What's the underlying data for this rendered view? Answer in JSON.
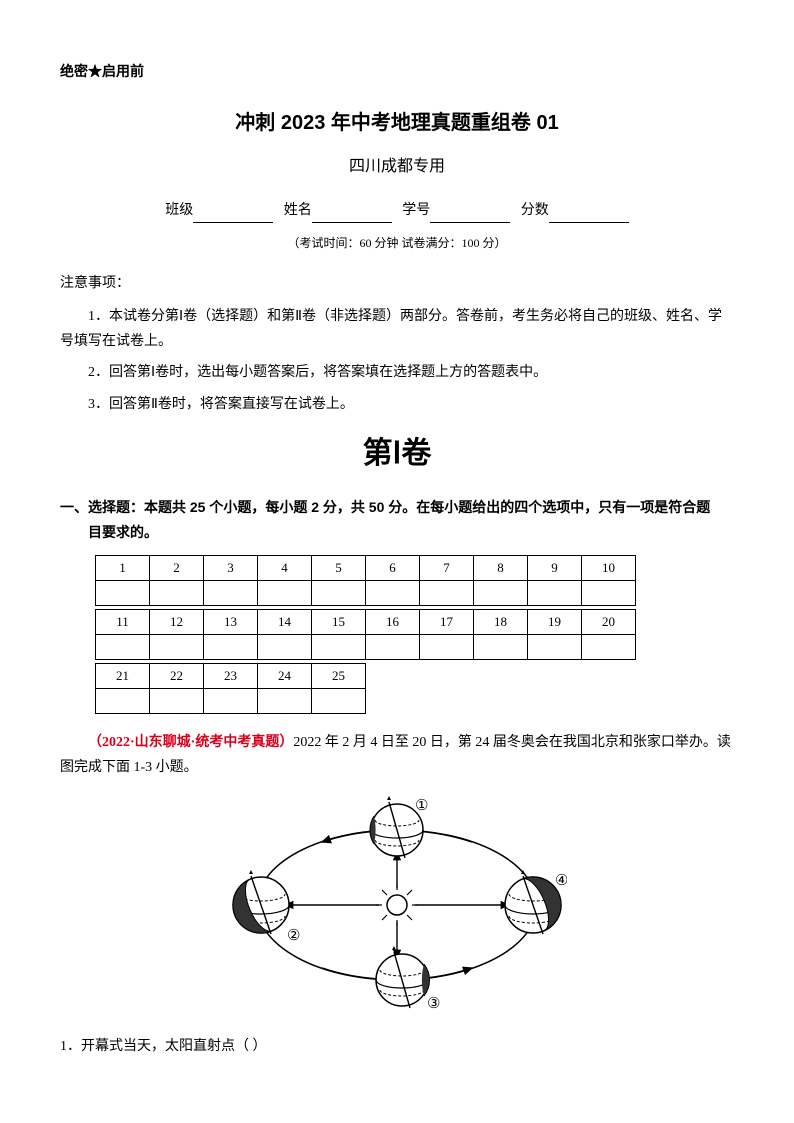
{
  "confidential": "绝密★启用前",
  "title": "冲刺 2023 年中考地理真题重组卷 01",
  "subtitle": "四川成都专用",
  "info_labels": {
    "class": "班级",
    "name": "姓名",
    "id": "学号",
    "score": "分数"
  },
  "exam_meta": "（考试时间：60 分钟   试卷满分：100 分）",
  "notes_title": "注意事项：",
  "notes": [
    "1．本试卷分第Ⅰ卷（选择题）和第Ⅱ卷（非选择题）两部分。答卷前，考生务必将自己的班级、姓名、学号填写在试卷上。",
    "2．回答第Ⅰ卷时，选出每小题答案后，将答案填在选择题上方的答题表中。",
    "3．回答第Ⅱ卷时，将答案直接写在试卷上。"
  ],
  "section1_title": "第Ⅰ卷",
  "section1_desc_lead": "一、选择题：本题共 25 个小题，每小题 2 分，共 50 分。在每小题给出的四个选项中，只有一项是符合题",
  "section1_desc_cont": "目要求的。",
  "answer_table": {
    "rows": [
      [
        "1",
        "2",
        "3",
        "4",
        "5",
        "6",
        "7",
        "8",
        "9",
        "10"
      ],
      [
        "",
        "",
        "",
        "",
        "",
        "",
        "",
        "",
        "",
        ""
      ],
      [
        "11",
        "12",
        "13",
        "14",
        "15",
        "16",
        "17",
        "18",
        "19",
        "20"
      ],
      [
        "",
        "",
        "",
        "",
        "",
        "",
        "",
        "",
        "",
        ""
      ],
      [
        "21",
        "22",
        "23",
        "24",
        "25"
      ],
      [
        "",
        "",
        "",
        "",
        ""
      ]
    ]
  },
  "context_source": "（2022·山东聊城·统考中考真题）",
  "context_text": "2022 年 2 月 4 日至 20 日，第 24 届冬奥会在我国北京和张家口举办。读图完成下面 1-3 小题。",
  "diagram": {
    "labels": {
      "top": "①",
      "left": "②",
      "bottom": "③",
      "right": "④"
    },
    "colors": {
      "stroke": "#000000",
      "fill_light": "#ffffff",
      "fill_dark": "#333333"
    }
  },
  "question1": "1．开幕式当天，太阳直射点（  ）"
}
